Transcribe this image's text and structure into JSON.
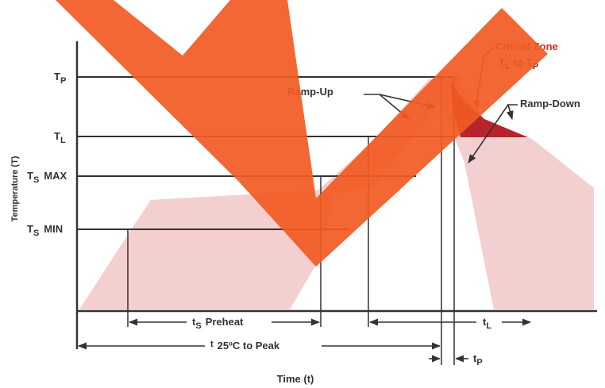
{
  "colors": {
    "band": "#f4cfcf",
    "critical": "#b6252c",
    "overlay": "#f15a22",
    "line": "#333333",
    "zone_text": "#d62b20"
  },
  "axis": {
    "y_label": "Temperature (T)",
    "x_label": "Time (t)"
  },
  "levels": {
    "tp": {
      "main": "T",
      "sub": "P"
    },
    "tl": {
      "main": "T",
      "sub": "L"
    },
    "ts_max": {
      "main": "T",
      "sub": "S",
      "suffix": "MAX"
    },
    "ts_min": {
      "main": "T",
      "sub": "S",
      "suffix": "MIN"
    }
  },
  "annotations": {
    "critical_zone": "Critical Zone",
    "critical_range": {
      "a_main": "T",
      "a_sub": "L",
      "mid": "to",
      "b_main": "T",
      "b_sub": "P"
    },
    "ramp_up": "Ramp-Up",
    "ramp_down": "Ramp-Down"
  },
  "durations": {
    "preheat": {
      "main": "t",
      "sub": "S",
      "text": "Preheat"
    },
    "peak": {
      "main": "t",
      "text": "25ºC to Peak"
    },
    "tl": {
      "main": "t",
      "sub": "L"
    },
    "tp": {
      "main": "t",
      "sub": "P"
    }
  }
}
